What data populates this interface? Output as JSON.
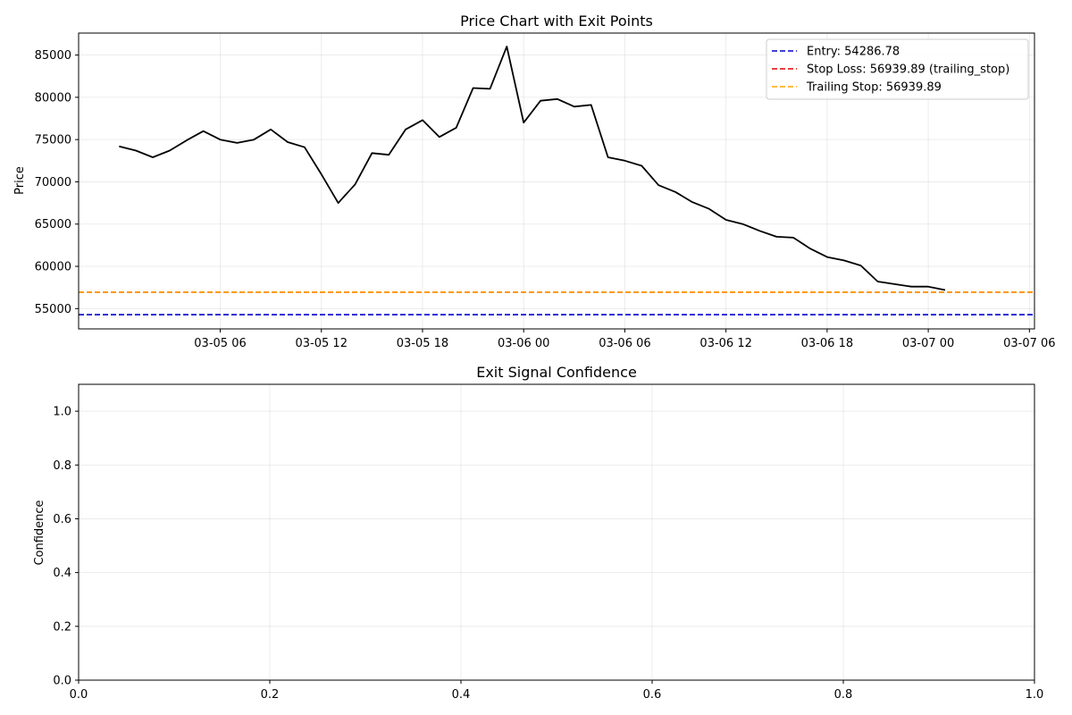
{
  "chart_data": [
    {
      "type": "line",
      "title": "Price Chart with Exit Points",
      "xlabel": "",
      "ylabel": "Price",
      "x_ticks": [
        "03-05 06",
        "03-05 12",
        "03-05 18",
        "03-06 00",
        "03-06 06",
        "03-06 12",
        "03-06 18",
        "03-07 00",
        "03-07 06"
      ],
      "x_tick_hours": [
        6,
        12,
        18,
        24,
        30,
        36,
        42,
        48,
        54
      ],
      "xlim_hours": [
        -2.4,
        54.3
      ],
      "ylim": [
        52600,
        87600
      ],
      "y_ticks": [
        55000,
        60000,
        65000,
        70000,
        75000,
        80000,
        85000
      ],
      "grid": true,
      "legend": "top-right",
      "series": [
        {
          "name": "",
          "color": "#000000",
          "x_hours": [
            0,
            1,
            2,
            3,
            4,
            5,
            6,
            7,
            8,
            9,
            10,
            11,
            12,
            13,
            14,
            15,
            16,
            17,
            18,
            19,
            20,
            21,
            22,
            23,
            24,
            25,
            26,
            27,
            28,
            29,
            30,
            31,
            32,
            33,
            34,
            35,
            36,
            37,
            38,
            39,
            40,
            41,
            42,
            43,
            44,
            45,
            46,
            47,
            48,
            49,
            50,
            51,
            52
          ],
          "values": [
            74200,
            73700,
            72900,
            73700,
            74900,
            76000,
            75000,
            74600,
            75000,
            76200,
            74700,
            74100,
            70900,
            67500,
            69700,
            73400,
            73200,
            76200,
            77300,
            75300,
            76400,
            81100,
            81000,
            86000,
            77000,
            79600,
            79800,
            78900,
            79100,
            72900,
            72500,
            71900,
            69600,
            68800,
            67600,
            66800,
            65500,
            65000,
            64200,
            63500,
            63400,
            62100,
            61100,
            60700,
            60100,
            58200,
            57900,
            57600,
            57600,
            57200,
            null,
            null,
            null
          ]
        }
      ],
      "hlines": [
        {
          "name": "Entry: 54286.78",
          "value": 54286.78,
          "color": "#0000cc",
          "style": "dashed"
        },
        {
          "name": "Stop Loss: 56939.89 (trailing_stop)",
          "value": 56939.89,
          "color": "#dd0000",
          "style": "dashed"
        },
        {
          "name": "Trailing Stop: 56939.89",
          "value": 56939.89,
          "color": "#ffa500",
          "style": "dashed"
        }
      ]
    },
    {
      "type": "line",
      "title": "Exit Signal Confidence",
      "xlabel": "",
      "ylabel": "Confidence",
      "xlim": [
        0,
        1
      ],
      "ylim": [
        0,
        1.1
      ],
      "x_ticks": [
        "0.0",
        "0.2",
        "0.4",
        "0.6",
        "0.8",
        "1.0"
      ],
      "x_tick_values": [
        0,
        0.2,
        0.4,
        0.6,
        0.8,
        1.0
      ],
      "y_ticks": [
        "0.0",
        "0.2",
        "0.4",
        "0.6",
        "0.8",
        "1.0"
      ],
      "y_tick_values": [
        0,
        0.2,
        0.4,
        0.6,
        0.8,
        1.0
      ],
      "grid": true,
      "series": []
    }
  ]
}
